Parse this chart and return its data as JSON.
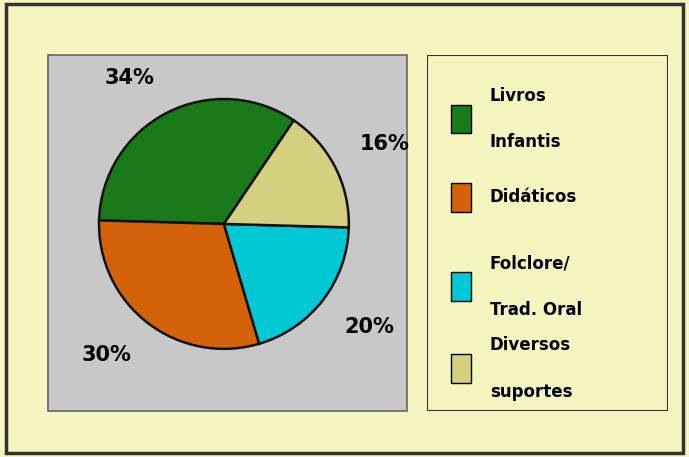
{
  "slices": [
    34,
    30,
    20,
    16
  ],
  "colors": [
    "#1a7a1a",
    "#d4620a",
    "#00c8d4",
    "#d4d080"
  ],
  "legend_labels": [
    "Livros\nInfantis",
    "Didáticos",
    "Folclore/\nTrad. Oral",
    "Diversos\nsuportes"
  ],
  "legend_colors": [
    "#1a7a1a",
    "#d4620a",
    "#00c8d4",
    "#d4d080"
  ],
  "startangle": 56,
  "bg_color": "#f5f5c0",
  "pie_bg_color": "#c8c8c8",
  "label_fontsize": 15,
  "legend_fontsize": 12,
  "border_color": "#333333",
  "wedge_edge_color": "#111111",
  "wedge_linewidth": 1.8
}
